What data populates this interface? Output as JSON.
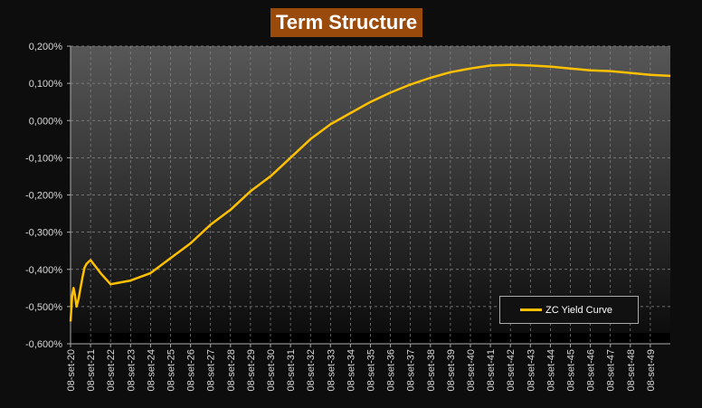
{
  "chart_data": {
    "type": "line",
    "title": "Term Structure",
    "xlabel": "",
    "ylabel": "",
    "ylim": [
      -0.6,
      0.2
    ],
    "yticks": [
      "0,200%",
      "0,100%",
      "0,000%",
      "-0,100%",
      "-0,200%",
      "-0,300%",
      "-0,400%",
      "-0,500%",
      "-0,600%"
    ],
    "xticks": [
      "08-set-20",
      "08-set-21",
      "08-set-22",
      "08-set-23",
      "08-set-24",
      "08-set-25",
      "08-set-26",
      "08-set-27",
      "08-set-28",
      "08-set-29",
      "08-set-30",
      "08-set-31",
      "08-set-32",
      "08-set-33",
      "08-set-34",
      "08-set-35",
      "08-set-36",
      "08-set-37",
      "08-set-38",
      "08-set-39",
      "08-set-40",
      "08-set-41",
      "08-set-42",
      "08-set-43",
      "08-set-44",
      "08-set-45",
      "08-set-46",
      "08-set-47",
      "08-set-48",
      "08-set-49"
    ],
    "grid": true,
    "legend": "bottom-right",
    "series": [
      {
        "name": "ZC Yield Curve",
        "color": "#ffc000",
        "x_years_from_08_set_20": [
          0,
          0.08,
          0.15,
          0.22,
          0.3,
          0.4,
          0.5,
          0.6,
          0.7,
          0.8,
          0.9,
          1.0,
          1.5,
          2,
          3,
          4,
          5,
          6,
          7,
          8,
          9,
          10,
          11,
          12,
          13,
          14,
          15,
          16,
          17,
          18,
          19,
          20,
          21,
          22,
          23,
          24,
          25,
          26,
          27,
          28,
          29,
          30
        ],
        "values": [
          -0.54,
          -0.47,
          -0.45,
          -0.47,
          -0.5,
          -0.48,
          -0.45,
          -0.42,
          -0.395,
          -0.385,
          -0.38,
          -0.375,
          -0.41,
          -0.44,
          -0.43,
          -0.41,
          -0.37,
          -0.33,
          -0.28,
          -0.24,
          -0.19,
          -0.15,
          -0.1,
          -0.05,
          -0.01,
          0.02,
          0.05,
          0.075,
          0.097,
          0.115,
          0.13,
          0.14,
          0.148,
          0.15,
          0.148,
          0.145,
          0.14,
          0.135,
          0.133,
          0.128,
          0.123,
          0.12
        ]
      }
    ]
  }
}
